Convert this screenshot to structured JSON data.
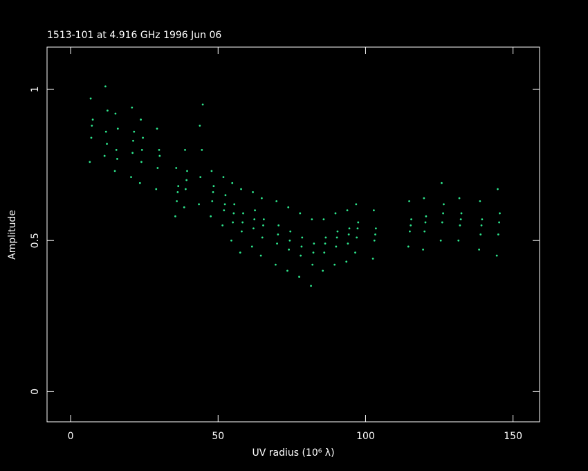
{
  "chart_data": {
    "type": "scatter",
    "title": "1513-101 at 4.916 GHz 1996 Jun 06",
    "x_label": "UV radius  (10⁶ λ)",
    "y_label": "Amplitude",
    "color": "#2de58c",
    "xlim": [
      -8,
      159
    ],
    "ylim": [
      -0.1,
      1.14
    ],
    "xticks": [
      0,
      50,
      100,
      150
    ],
    "yticks": [
      0,
      0.5,
      1
    ],
    "x": [
      6.5,
      7,
      7.5,
      6.8,
      7.2,
      11.5,
      12,
      12.5,
      11.8,
      12.3,
      15,
      15.5,
      16,
      15.2,
      15.8,
      20.5,
      21,
      21.5,
      20.8,
      21.2,
      23.5,
      24,
      24.5,
      23.8,
      24.2,
      29,
      29.5,
      30,
      29.3,
      30.2,
      35.5,
      36,
      36.5,
      35.8,
      36.3,
      38.5,
      39,
      39.5,
      38.8,
      39.3,
      43.5,
      44,
      44.5,
      43.8,
      44.8,
      47.5,
      48,
      48.5,
      47.8,
      48.3,
      51.5,
      52,
      52.5,
      51.8,
      52.3,
      54.5,
      55,
      55.5,
      54.8,
      55.3,
      57.5,
      58,
      58.5,
      57.8,
      58.3,
      61.5,
      62,
      62.5,
      61.8,
      62.3,
      64.5,
      65,
      65.5,
      64.8,
      65.3,
      69.5,
      70,
      70.5,
      69.8,
      70.3,
      73.5,
      74,
      74.5,
      73.8,
      74.3,
      77.5,
      78,
      78.5,
      77.8,
      78.3,
      81.5,
      82,
      82.5,
      81.8,
      82.3,
      85.5,
      86,
      86.5,
      85.8,
      86.3,
      89.5,
      90,
      90.5,
      89.8,
      90.3,
      93.5,
      94,
      94.5,
      93.8,
      94.3,
      96.5,
      97,
      97.5,
      96.8,
      97.3,
      102.5,
      103,
      103.5,
      102.8,
      103.3,
      114.5,
      115,
      115.5,
      114.8,
      115.3,
      119.5,
      120,
      120.5,
      119.8,
      120.3,
      125.5,
      126,
      126.5,
      125.8,
      126.3,
      131.5,
      132,
      132.5,
      131.8,
      132.3,
      138.5,
      139,
      139.5,
      138.8,
      139.3,
      144.5,
      145,
      145.5,
      144.8,
      145.3
    ],
    "y": [
      0.76,
      0.84,
      0.9,
      0.97,
      0.88,
      0.78,
      0.86,
      0.93,
      1.01,
      0.82,
      0.73,
      0.8,
      0.87,
      0.92,
      0.77,
      0.71,
      0.79,
      0.86,
      0.94,
      0.83,
      0.69,
      0.76,
      0.84,
      0.9,
      0.8,
      0.67,
      0.74,
      0.8,
      0.87,
      0.78,
      0.58,
      0.63,
      0.68,
      0.74,
      0.66,
      0.61,
      0.67,
      0.73,
      0.8,
      0.7,
      0.62,
      0.71,
      0.8,
      0.88,
      0.95,
      0.58,
      0.63,
      0.68,
      0.73,
      0.66,
      0.55,
      0.6,
      0.65,
      0.71,
      0.62,
      0.5,
      0.56,
      0.62,
      0.69,
      0.59,
      0.46,
      0.53,
      0.59,
      0.67,
      0.56,
      0.48,
      0.54,
      0.6,
      0.66,
      0.57,
      0.45,
      0.51,
      0.57,
      0.64,
      0.55,
      0.42,
      0.49,
      0.55,
      0.63,
      0.52,
      0.4,
      0.47,
      0.53,
      0.61,
      0.5,
      0.38,
      0.45,
      0.51,
      0.59,
      0.48,
      0.35,
      0.42,
      0.49,
      0.57,
      0.46,
      0.4,
      0.46,
      0.51,
      0.57,
      0.49,
      0.42,
      0.48,
      0.53,
      0.59,
      0.51,
      0.43,
      0.49,
      0.54,
      0.6,
      0.52,
      0.46,
      0.51,
      0.56,
      0.62,
      0.54,
      0.44,
      0.5,
      0.54,
      0.6,
      0.52,
      0.48,
      0.53,
      0.57,
      0.63,
      0.55,
      0.47,
      0.53,
      0.58,
      0.64,
      0.56,
      0.5,
      0.56,
      0.62,
      0.69,
      0.59,
      0.5,
      0.55,
      0.59,
      0.64,
      0.57,
      0.47,
      0.52,
      0.57,
      0.63,
      0.55,
      0.45,
      0.52,
      0.59,
      0.67,
      0.56
    ]
  }
}
